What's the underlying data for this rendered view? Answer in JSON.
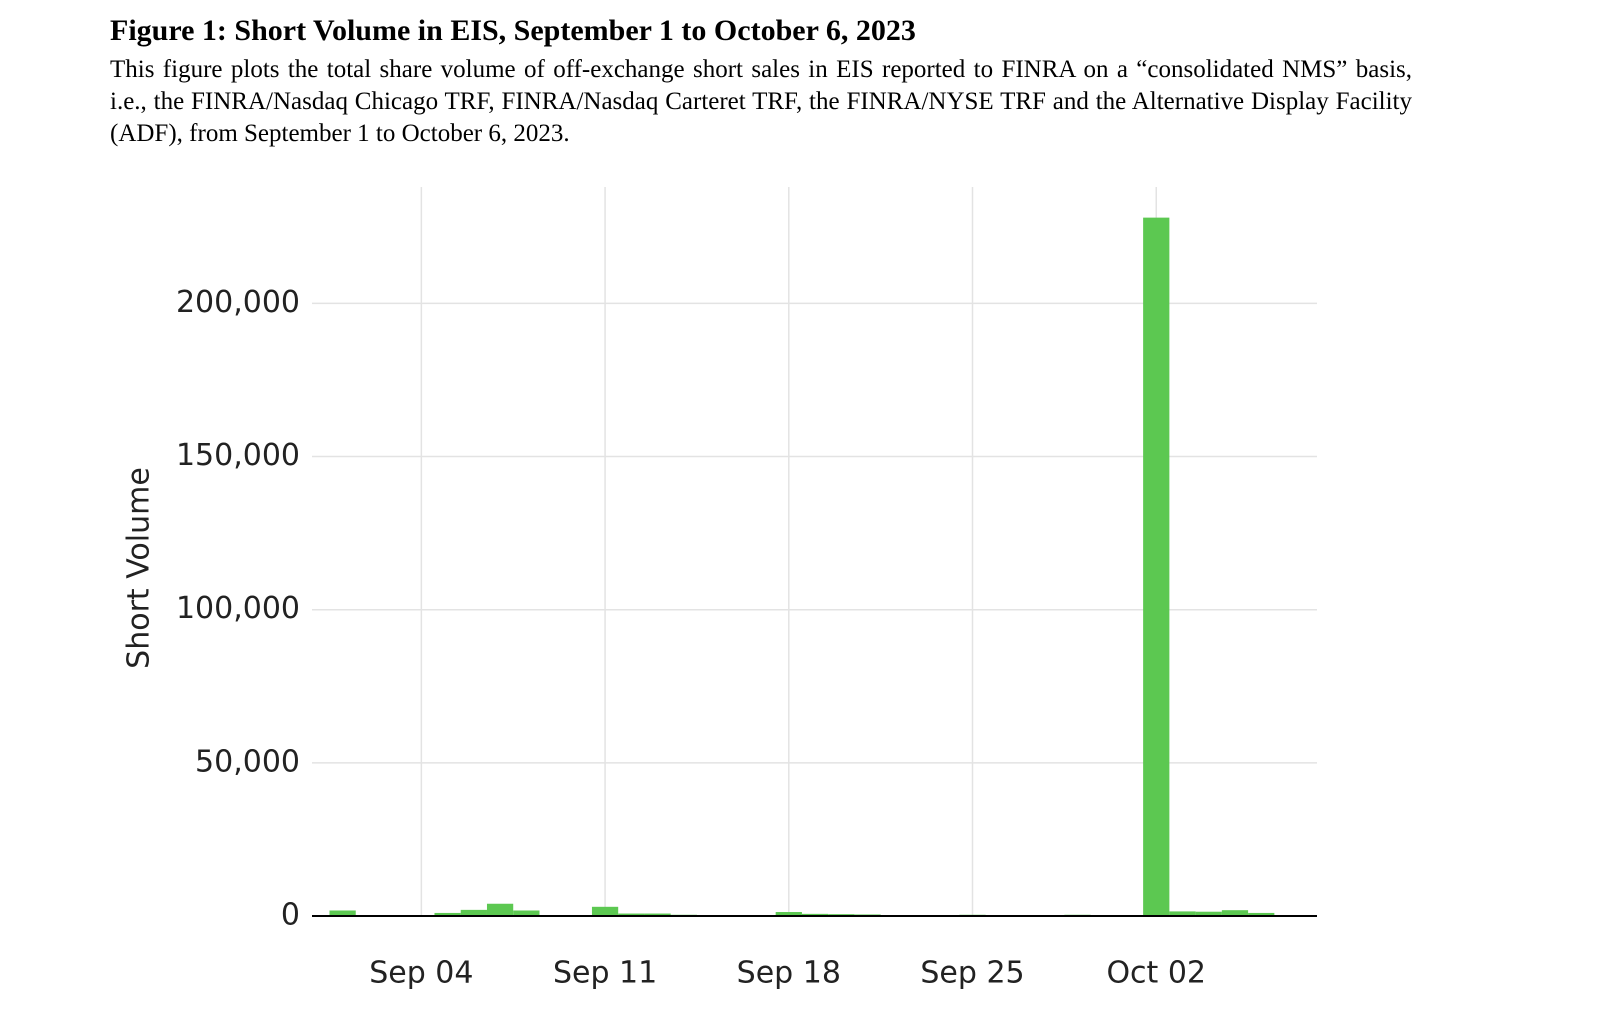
{
  "chart_data": {
    "type": "bar",
    "title": "Figure 1: Short Volume in EIS, September 1 to October 6, 2023",
    "subtitle": "This figure plots the total share volume of off-exchange short sales in EIS reported to FINRA on a “consolidated NMS” basis, i.e., the FINRA/Nasdaq Chicago TRF, FINRA/Nasdaq Carteret TRF, the FINRA/NYSE TRF and the Alternative Display Facility (ADF), from September 1 to October 6, 2023.",
    "y_label": "Short Volume",
    "x": [
      "2023-09-01",
      "2023-09-05",
      "2023-09-06",
      "2023-09-07",
      "2023-09-08",
      "2023-09-11",
      "2023-09-12",
      "2023-09-13",
      "2023-09-14",
      "2023-09-15",
      "2023-09-18",
      "2023-09-19",
      "2023-09-20",
      "2023-09-21",
      "2023-09-22",
      "2023-09-25",
      "2023-09-26",
      "2023-09-27",
      "2023-09-28",
      "2023-09-29",
      "2023-10-02",
      "2023-10-03",
      "2023-10-04",
      "2023-10-05",
      "2023-10-06"
    ],
    "values": [
      1800,
      1000,
      2000,
      4000,
      1800,
      3000,
      800,
      800,
      400,
      300,
      1300,
      700,
      600,
      500,
      300,
      400,
      300,
      200,
      300,
      400,
      228000,
      1500,
      1400,
      1900,
      1000
    ],
    "color": "#5cc851",
    "xlim": [
      "2023-08-30T20:00:00Z",
      "2023-10-08T03:00:00Z"
    ],
    "xticks": [
      {
        "value": "2023-09-04",
        "label": "Sep 04"
      },
      {
        "value": "2023-09-11",
        "label": "Sep 11"
      },
      {
        "value": "2023-09-18",
        "label": "Sep 18"
      },
      {
        "value": "2023-09-25",
        "label": "Sep 25"
      },
      {
        "value": "2023-10-02",
        "label": "Oct 02"
      }
    ],
    "ylim": [
      0,
      238000
    ],
    "yticks": [
      {
        "value": 0,
        "label": "0"
      },
      {
        "value": 50000,
        "label": "50,000"
      },
      {
        "value": 100000,
        "label": "100,000"
      },
      {
        "value": 150000,
        "label": "150,000"
      },
      {
        "value": 200000,
        "label": "200,000"
      }
    ],
    "grid": true
  }
}
